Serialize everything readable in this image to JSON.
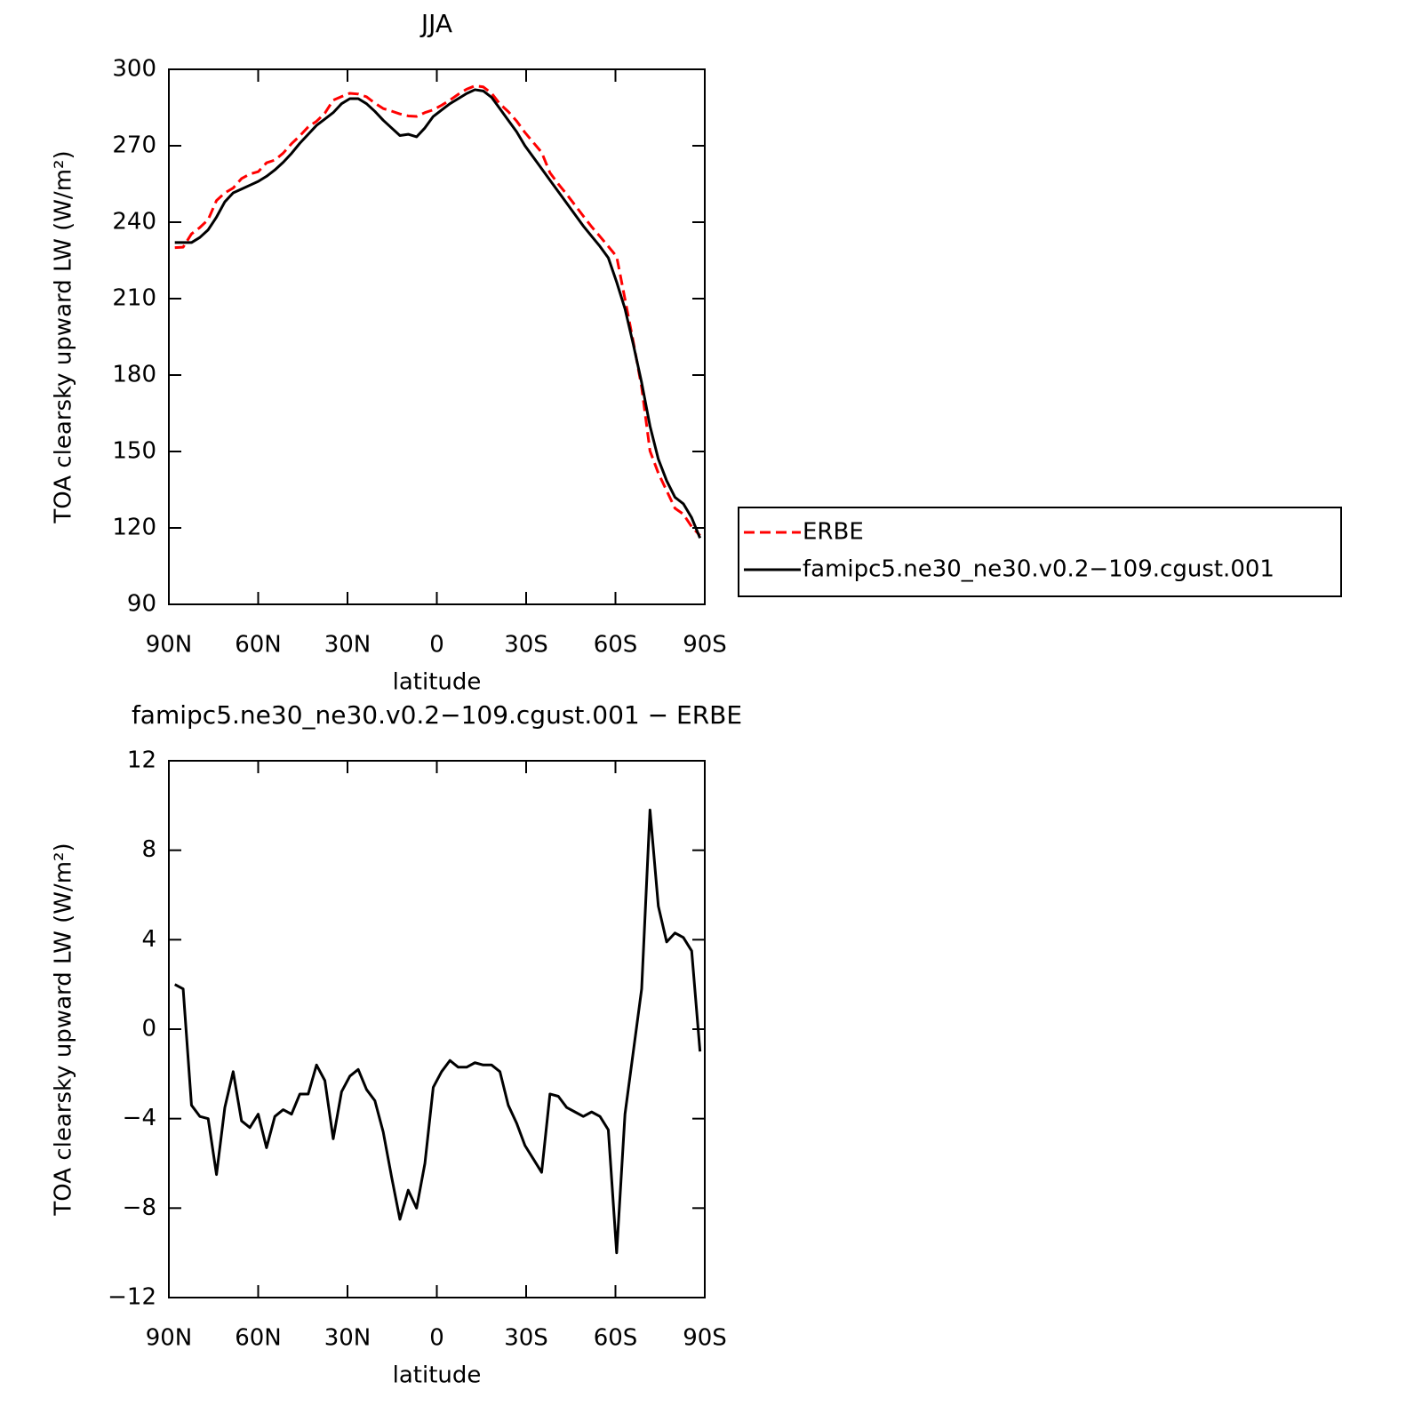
{
  "chart_data": [
    {
      "type": "line",
      "title": "JJA",
      "xlabel": "latitude",
      "ylabel": "TOA clearsky upward LW (W/m²)",
      "x": [
        88.0,
        85.2,
        82.4,
        79.6,
        76.8,
        74.0,
        71.2,
        68.4,
        65.6,
        62.8,
        60.0,
        57.2,
        54.4,
        51.6,
        48.8,
        46.0,
        43.2,
        40.4,
        37.6,
        34.8,
        32.0,
        29.2,
        26.4,
        23.6,
        20.8,
        18.0,
        15.2,
        12.4,
        9.6,
        6.8,
        4.0,
        1.2,
        -1.6,
        -4.4,
        -7.2,
        -10.0,
        -12.8,
        -15.6,
        -18.4,
        -21.2,
        -24.0,
        -26.8,
        -29.6,
        -32.4,
        -35.2,
        -38.0,
        -40.8,
        -43.6,
        -46.4,
        -49.2,
        -52.0,
        -54.8,
        -57.6,
        -60.4,
        -63.2,
        -66.0,
        -68.8,
        -71.6,
        -74.4,
        -77.2,
        -80.0,
        -82.8,
        -85.6,
        -88.4
      ],
      "series": [
        {
          "name": "ERBE",
          "color": "#ff0000",
          "line_style": "dashed",
          "values": [
            230,
            230.2,
            235.4,
            237.9,
            241,
            248.5,
            251.5,
            253.4,
            257.1,
            258.9,
            259.8,
            263.3,
            264.4,
            267.1,
            270.8,
            273.9,
            277.4,
            279.6,
            282.8,
            287.9,
            289.3,
            290.6,
            290.3,
            289.2,
            286.7,
            284.6,
            283.6,
            282.5,
            281.7,
            281.5,
            283,
            284.1,
            285.9,
            287.9,
            290.2,
            292.2,
            293.5,
            293.1,
            290.6,
            286.4,
            283.4,
            279.7,
            275.2,
            271.3,
            267.4,
            259.4,
            255,
            251,
            246.7,
            242.4,
            238.2,
            234.4,
            230.5,
            226.5,
            209.8,
            193,
            175.2,
            150.2,
            141.5,
            134.6,
            127.7,
            125.4,
            120.5,
            117
          ]
        },
        {
          "name": "famipc5.ne30_ne30.v0.2−109.cgust.001",
          "color": "#000000",
          "line_style": "solid",
          "values": [
            232,
            232,
            232,
            234,
            237,
            242,
            248,
            251.5,
            253,
            254.5,
            256,
            258,
            260.5,
            263.5,
            267,
            271,
            274.5,
            278,
            280.5,
            283,
            286.5,
            288.5,
            288.5,
            286.5,
            283.5,
            280,
            277,
            274,
            274.5,
            273.5,
            277,
            281.5,
            284,
            286.5,
            288.5,
            290.5,
            292,
            291.5,
            289,
            284.5,
            280,
            275.5,
            270,
            265.5,
            261,
            256.5,
            252,
            247.5,
            243,
            238.5,
            234.5,
            230.5,
            226,
            216.5,
            206,
            192,
            177,
            160,
            147,
            138.5,
            132,
            129.5,
            124,
            116
          ]
        }
      ],
      "xlim": [
        90,
        -90
      ],
      "xticks": [
        {
          "value": 90,
          "label": "90N"
        },
        {
          "value": 60,
          "label": "60N"
        },
        {
          "value": 30,
          "label": "30N"
        },
        0,
        {
          "value": -30,
          "label": "30S"
        },
        {
          "value": -60,
          "label": "60S"
        },
        {
          "value": -90,
          "label": "90S"
        }
      ],
      "ylim": [
        90,
        300
      ],
      "yticks": [
        90,
        120,
        150,
        180,
        210,
        240,
        270,
        300
      ],
      "legend": "right"
    },
    {
      "type": "line",
      "title": "famipc5.ne30_ne30.v0.2−109.cgust.001 − ERBE",
      "xlabel": "latitude",
      "ylabel": "TOA clearsky upward LW (W/m²)",
      "x": [
        88.0,
        85.2,
        82.4,
        79.6,
        76.8,
        74.0,
        71.2,
        68.4,
        65.6,
        62.8,
        60.0,
        57.2,
        54.4,
        51.6,
        48.8,
        46.0,
        43.2,
        40.4,
        37.6,
        34.8,
        32.0,
        29.2,
        26.4,
        23.6,
        20.8,
        18.0,
        15.2,
        12.4,
        9.6,
        6.8,
        4.0,
        1.2,
        -1.6,
        -4.4,
        -7.2,
        -10.0,
        -12.8,
        -15.6,
        -18.4,
        -21.2,
        -24.0,
        -26.8,
        -29.6,
        -32.4,
        -35.2,
        -38.0,
        -40.8,
        -43.6,
        -46.4,
        -49.2,
        -52.0,
        -54.8,
        -57.6,
        -60.4,
        -63.2,
        -66.0,
        -68.8,
        -71.6,
        -74.4,
        -77.2,
        -80.0,
        -82.8,
        -85.6,
        -88.4
      ],
      "values": [
        2.0,
        1.8,
        -3.4,
        -3.9,
        -4.0,
        -6.5,
        -3.5,
        -1.9,
        -4.1,
        -4.4,
        -3.8,
        -5.3,
        -3.9,
        -3.6,
        -3.8,
        -2.9,
        -2.9,
        -1.6,
        -2.3,
        -4.9,
        -2.8,
        -2.1,
        -1.8,
        -2.7,
        -3.2,
        -4.6,
        -6.6,
        -8.5,
        -7.2,
        -8.0,
        -6.0,
        -2.6,
        -1.9,
        -1.4,
        -1.7,
        -1.7,
        -1.5,
        -1.6,
        -1.6,
        -1.9,
        -3.4,
        -4.2,
        -5.2,
        -5.8,
        -6.4,
        -2.9,
        -3.0,
        -3.5,
        -3.7,
        -3.9,
        -3.7,
        -3.9,
        -4.5,
        -10.0,
        -3.8,
        -1.0,
        1.8,
        9.8,
        5.5,
        3.9,
        4.3,
        4.1,
        3.5,
        -1.0
      ],
      "color": "#000000",
      "line_style": "solid",
      "xlim": [
        90,
        -90
      ],
      "xticks": [
        {
          "value": 90,
          "label": "90N"
        },
        {
          "value": 60,
          "label": "60N"
        },
        {
          "value": 30,
          "label": "30N"
        },
        0,
        {
          "value": -30,
          "label": "30S"
        },
        {
          "value": -60,
          "label": "60S"
        },
        {
          "value": -90,
          "label": "90S"
        }
      ],
      "ylim": [
        -12,
        12
      ],
      "yticks": [
        {
          "value": -12,
          "label": "−12"
        },
        {
          "value": -8,
          "label": "−8"
        },
        {
          "value": -4,
          "label": "−4"
        },
        0,
        4,
        8,
        12
      ]
    }
  ]
}
